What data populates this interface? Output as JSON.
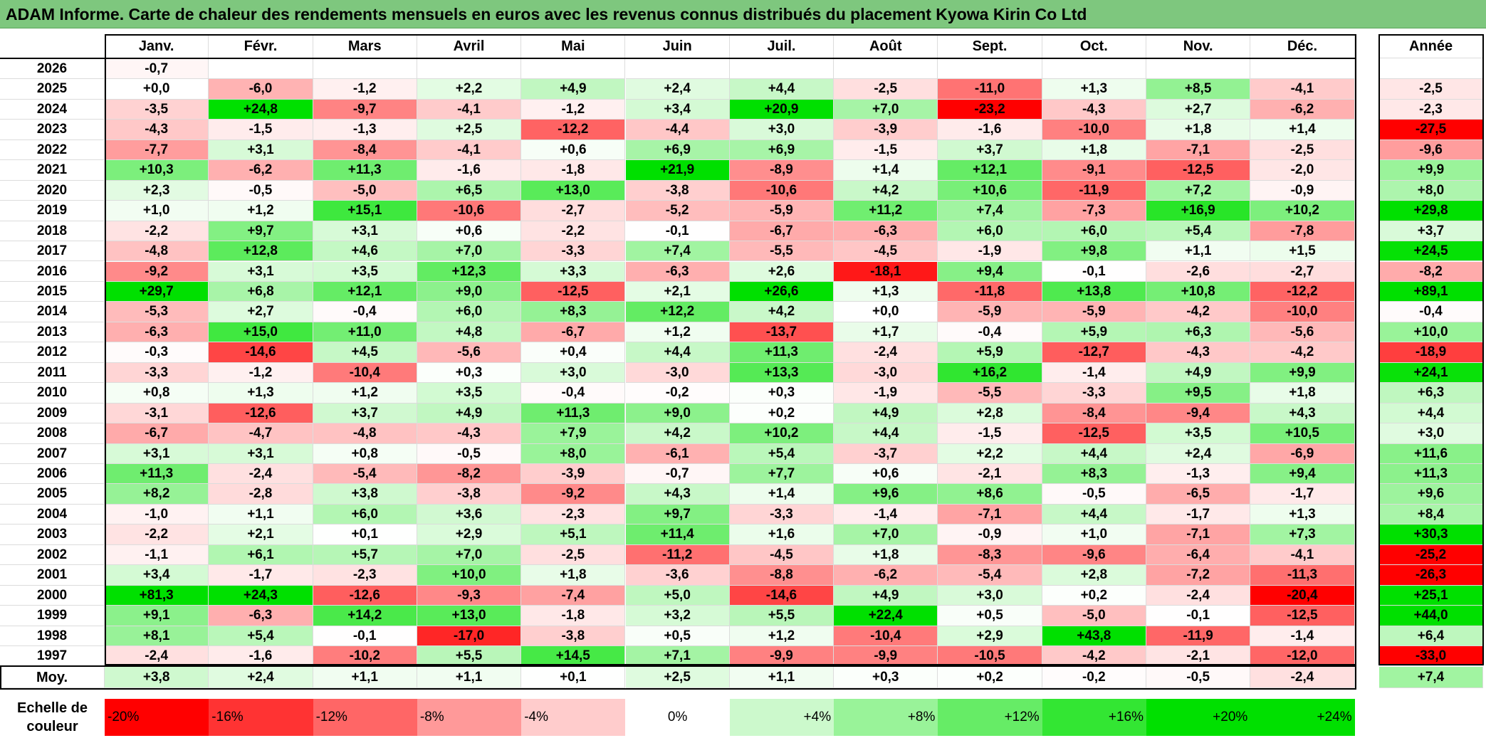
{
  "title": "ADAM Informe. Carte de chaleur des rendements mensuels en euros avec les revenus connus distribués du placement Kyowa Kirin Co Ltd",
  "chart_data": {
    "type": "heatmap",
    "title": "ADAM Informe. Carte de chaleur des rendements mensuels en euros avec les revenus connus distribués du placement Kyowa Kirin Co Ltd",
    "months": [
      "Janv.",
      "Févr.",
      "Mars",
      "Avril",
      "Mai",
      "Juin",
      "Juil.",
      "Août",
      "Sept.",
      "Oct.",
      "Nov.",
      "Déc."
    ],
    "annual_label": "Année",
    "average_label": "Moy.",
    "rows": [
      {
        "year": "2026",
        "values": [
          "-0,7",
          "",
          "",
          "",
          "",
          "",
          "",
          "",
          "",
          "",
          "",
          ""
        ],
        "annual": ""
      },
      {
        "year": "2025",
        "values": [
          "+0,0",
          "-6,0",
          "-1,2",
          "+2,2",
          "+4,9",
          "+2,4",
          "+4,4",
          "-2,5",
          "-11,0",
          "+1,3",
          "+8,5",
          "-4,1"
        ],
        "annual": "-2,5"
      },
      {
        "year": "2024",
        "values": [
          "-3,5",
          "+24,8",
          "-9,7",
          "-4,1",
          "-1,2",
          "+3,4",
          "+20,9",
          "+7,0",
          "-23,2",
          "-4,3",
          "+2,7",
          "-6,2"
        ],
        "annual": "-2,3"
      },
      {
        "year": "2023",
        "values": [
          "-4,3",
          "-1,5",
          "-1,3",
          "+2,5",
          "-12,2",
          "-4,4",
          "+3,0",
          "-3,9",
          "-1,6",
          "-10,0",
          "+1,8",
          "+1,4"
        ],
        "annual": "-27,5"
      },
      {
        "year": "2022",
        "values": [
          "-7,7",
          "+3,1",
          "-8,4",
          "-4,1",
          "+0,6",
          "+6,9",
          "+6,9",
          "-1,5",
          "+3,7",
          "+1,8",
          "-7,1",
          "-2,5"
        ],
        "annual": "-9,6"
      },
      {
        "year": "2021",
        "values": [
          "+10,3",
          "-6,2",
          "+11,3",
          "-1,6",
          "-1,8",
          "+21,9",
          "-8,9",
          "+1,4",
          "+12,1",
          "-9,1",
          "-12,5",
          "-2,0"
        ],
        "annual": "+9,9"
      },
      {
        "year": "2020",
        "values": [
          "+2,3",
          "-0,5",
          "-5,0",
          "+6,5",
          "+13,0",
          "-3,8",
          "-10,6",
          "+4,2",
          "+10,6",
          "-11,9",
          "+7,2",
          "-0,9"
        ],
        "annual": "+8,0"
      },
      {
        "year": "2019",
        "values": [
          "+1,0",
          "+1,2",
          "+15,1",
          "-10,6",
          "-2,7",
          "-5,2",
          "-5,9",
          "+11,2",
          "+7,4",
          "-7,3",
          "+16,9",
          "+10,2"
        ],
        "annual": "+29,8"
      },
      {
        "year": "2018",
        "values": [
          "-2,2",
          "+9,7",
          "+3,1",
          "+0,6",
          "-2,2",
          "-0,1",
          "-6,7",
          "-6,3",
          "+6,0",
          "+6,0",
          "+5,4",
          "-7,8"
        ],
        "annual": "+3,7"
      },
      {
        "year": "2017",
        "values": [
          "-4,8",
          "+12,8",
          "+4,6",
          "+7,0",
          "-3,3",
          "+7,4",
          "-5,5",
          "-4,5",
          "-1,9",
          "+9,8",
          "+1,1",
          "+1,5"
        ],
        "annual": "+24,5"
      },
      {
        "year": "2016",
        "values": [
          "-9,2",
          "+3,1",
          "+3,5",
          "+12,3",
          "+3,3",
          "-6,3",
          "+2,6",
          "-18,1",
          "+9,4",
          "-0,1",
          "-2,6",
          "-2,7"
        ],
        "annual": "-8,2"
      },
      {
        "year": "2015",
        "values": [
          "+29,7",
          "+6,8",
          "+12,1",
          "+9,0",
          "-12,5",
          "+2,1",
          "+26,6",
          "+1,3",
          "-11,8",
          "+13,8",
          "+10,8",
          "-12,2"
        ],
        "annual": "+89,1"
      },
      {
        "year": "2014",
        "values": [
          "-5,3",
          "+2,7",
          "-0,4",
          "+6,0",
          "+8,3",
          "+12,2",
          "+4,2",
          "+0,0",
          "-5,9",
          "-5,9",
          "-4,2",
          "-10,0"
        ],
        "annual": "-0,4"
      },
      {
        "year": "2013",
        "values": [
          "-6,3",
          "+15,0",
          "+11,0",
          "+4,8",
          "-6,7",
          "+1,2",
          "-13,7",
          "+1,7",
          "-0,4",
          "+5,9",
          "+6,3",
          "-5,6"
        ],
        "annual": "+10,0"
      },
      {
        "year": "2012",
        "values": [
          "-0,3",
          "-14,6",
          "+4,5",
          "-5,6",
          "+0,4",
          "+4,4",
          "+11,3",
          "-2,4",
          "+5,9",
          "-12,7",
          "-4,3",
          "-4,2"
        ],
        "annual": "-18,9"
      },
      {
        "year": "2011",
        "values": [
          "-3,3",
          "-1,2",
          "-10,4",
          "+0,3",
          "+3,0",
          "-3,0",
          "+13,3",
          "-3,0",
          "+16,2",
          "-1,4",
          "+4,9",
          "+9,9"
        ],
        "annual": "+24,1"
      },
      {
        "year": "2010",
        "values": [
          "+0,8",
          "+1,3",
          "+1,2",
          "+3,5",
          "-0,4",
          "-0,2",
          "+0,3",
          "-1,9",
          "-5,5",
          "-3,3",
          "+9,5",
          "+1,8"
        ],
        "annual": "+6,3"
      },
      {
        "year": "2009",
        "values": [
          "-3,1",
          "-12,6",
          "+3,7",
          "+4,9",
          "+11,3",
          "+9,0",
          "+0,2",
          "+4,9",
          "+2,8",
          "-8,4",
          "-9,4",
          "+4,3"
        ],
        "annual": "+4,4"
      },
      {
        "year": "2008",
        "values": [
          "-6,7",
          "-4,7",
          "-4,8",
          "-4,3",
          "+7,9",
          "+4,2",
          "+10,2",
          "+4,4",
          "-1,5",
          "-12,5",
          "+3,5",
          "+10,5"
        ],
        "annual": "+3,0"
      },
      {
        "year": "2007",
        "values": [
          "+3,1",
          "+3,1",
          "+0,8",
          "-0,5",
          "+8,0",
          "-6,1",
          "+5,4",
          "-3,7",
          "+2,2",
          "+4,4",
          "+2,4",
          "-6,9"
        ],
        "annual": "+11,6"
      },
      {
        "year": "2006",
        "values": [
          "+11,3",
          "-2,4",
          "-5,4",
          "-8,2",
          "-3,9",
          "-0,7",
          "+7,7",
          "+0,6",
          "-2,1",
          "+8,3",
          "-1,3",
          "+9,4"
        ],
        "annual": "+11,3"
      },
      {
        "year": "2005",
        "values": [
          "+8,2",
          "-2,8",
          "+3,8",
          "-3,8",
          "-9,2",
          "+4,3",
          "+1,4",
          "+9,6",
          "+8,6",
          "-0,5",
          "-6,5",
          "-1,7"
        ],
        "annual": "+9,6"
      },
      {
        "year": "2004",
        "values": [
          "-1,0",
          "+1,1",
          "+6,0",
          "+3,6",
          "-2,3",
          "+9,7",
          "-3,3",
          "-1,4",
          "-7,1",
          "+4,4",
          "-1,7",
          "+1,3"
        ],
        "annual": "+8,4"
      },
      {
        "year": "2003",
        "values": [
          "-2,2",
          "+2,1",
          "+0,1",
          "+2,9",
          "+5,1",
          "+11,4",
          "+1,6",
          "+7,0",
          "-0,9",
          "+1,0",
          "-7,1",
          "+7,3"
        ],
        "annual": "+30,3"
      },
      {
        "year": "2002",
        "values": [
          "-1,1",
          "+6,1",
          "+5,7",
          "+7,0",
          "-2,5",
          "-11,2",
          "-4,5",
          "+1,8",
          "-8,3",
          "-9,6",
          "-6,4",
          "-4,1"
        ],
        "annual": "-25,2"
      },
      {
        "year": "2001",
        "values": [
          "+3,4",
          "-1,7",
          "-2,3",
          "+10,0",
          "+1,8",
          "-3,6",
          "-8,8",
          "-6,2",
          "-5,4",
          "+2,8",
          "-7,2",
          "-11,3"
        ],
        "annual": "-26,3"
      },
      {
        "year": "2000",
        "values": [
          "+81,3",
          "+24,3",
          "-12,6",
          "-9,3",
          "-7,4",
          "+5,0",
          "-14,6",
          "+4,9",
          "+3,0",
          "+0,2",
          "-2,4",
          "-20,4"
        ],
        "annual": "+25,1"
      },
      {
        "year": "1999",
        "values": [
          "+9,1",
          "-6,3",
          "+14,2",
          "+13,0",
          "-1,8",
          "+3,2",
          "+5,5",
          "+22,4",
          "+0,5",
          "-5,0",
          "-0,1",
          "-12,5"
        ],
        "annual": "+44,0"
      },
      {
        "year": "1998",
        "values": [
          "+8,1",
          "+5,4",
          "-0,1",
          "-17,0",
          "-3,8",
          "+0,5",
          "+1,2",
          "-10,4",
          "+2,9",
          "+43,8",
          "-11,9",
          "-1,4"
        ],
        "annual": "+6,4"
      },
      {
        "year": "1997",
        "values": [
          "-2,4",
          "-1,6",
          "-10,2",
          "+5,5",
          "+14,5",
          "+7,1",
          "-9,9",
          "-9,9",
          "-10,5",
          "-4,2",
          "-2,1",
          "-12,0"
        ],
        "annual": "-33,0"
      }
    ],
    "average": {
      "values": [
        "+3,8",
        "+2,4",
        "+1,1",
        "+1,1",
        "+0,1",
        "+2,5",
        "+1,1",
        "+0,3",
        "+0,2",
        "-0,2",
        "-0,5",
        "-2,4"
      ],
      "annual": "+7,4"
    },
    "scale_label": "Echelle de couleur",
    "scale": [
      "-20%",
      "-16%",
      "-12%",
      "-8%",
      "-4%",
      "0%",
      "+4%",
      "+8%",
      "+12%",
      "+16%",
      "+20%",
      "+24%"
    ],
    "colors": {
      "negative": "#ff0000",
      "positive": "#00e000",
      "neutral": "#ffffff",
      "title_bar": "#7ec77e"
    }
  }
}
